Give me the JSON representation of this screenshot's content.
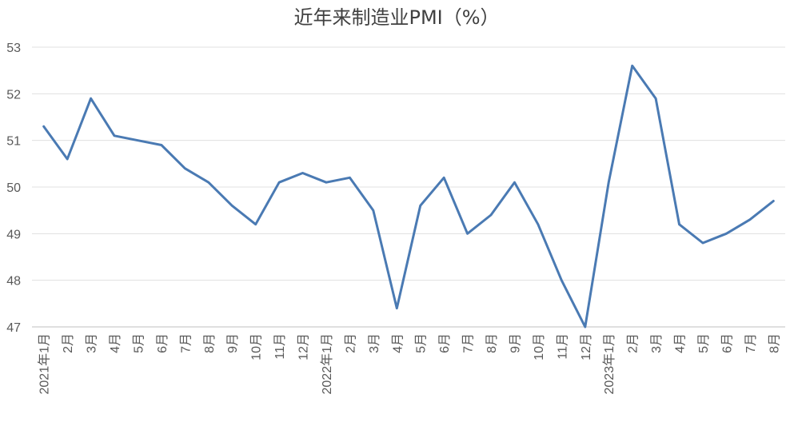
{
  "chart_data": {
    "type": "line",
    "title": "近年来制造业PMI（%）",
    "xlabel": "",
    "ylabel": "",
    "ylim": [
      47,
      53
    ],
    "yticks": [
      47,
      48,
      49,
      50,
      51,
      52,
      53
    ],
    "grid": true,
    "legend": "none",
    "categories": [
      "2021年1月",
      "2月",
      "3月",
      "4月",
      "5月",
      "6月",
      "7月",
      "8月",
      "9月",
      "10月",
      "11月",
      "12月",
      "2022年1月",
      "2月",
      "3月",
      "4月",
      "5月",
      "6月",
      "7月",
      "8月",
      "9月",
      "10月",
      "11月",
      "12月",
      "2023年1月",
      "2月",
      "3月",
      "4月",
      "5月",
      "6月",
      "7月",
      "8月"
    ],
    "series": [
      {
        "values": [
          51.3,
          50.6,
          51.9,
          51.1,
          51.0,
          50.9,
          50.4,
          50.1,
          49.6,
          49.2,
          50.1,
          50.3,
          50.1,
          50.2,
          49.5,
          47.4,
          49.6,
          50.2,
          49.0,
          49.4,
          50.1,
          49.2,
          48.0,
          47.0,
          50.1,
          52.6,
          51.9,
          49.2,
          48.8,
          49.0,
          49.3,
          49.7
        ],
        "color": "#4a7ab3"
      }
    ]
  }
}
